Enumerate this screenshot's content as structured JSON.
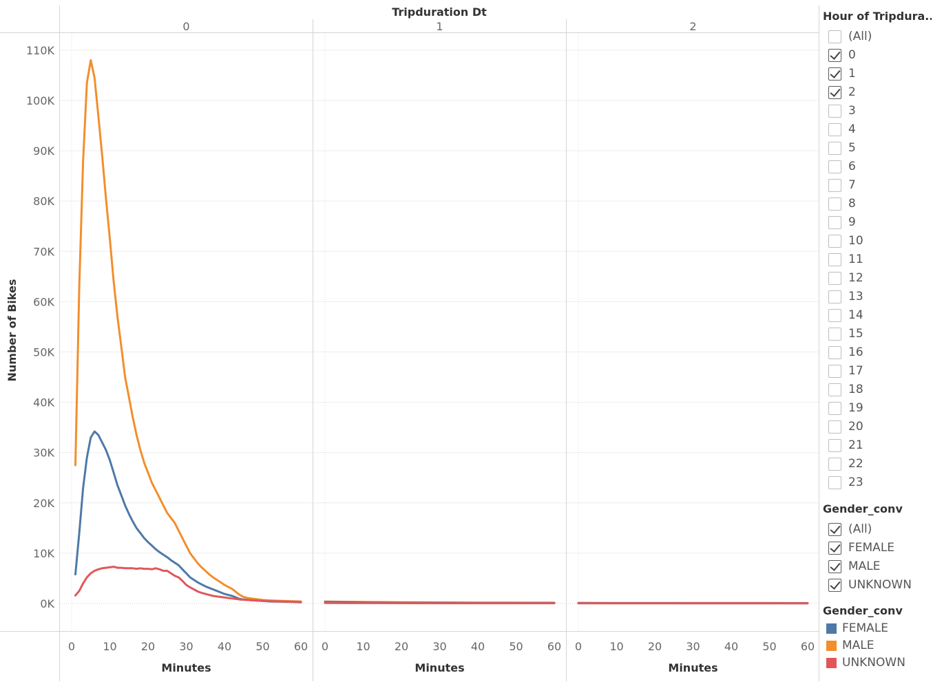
{
  "chart_data": {
    "type": "line",
    "column_header": "Tripduration Dt",
    "panels": [
      "0",
      "1",
      "2"
    ],
    "xlabel": "Minutes",
    "ylabel": "Number of Bikes",
    "xlim": [
      0,
      60
    ],
    "ylim": [
      -5000,
      115000
    ],
    "x_ticks": [
      "0",
      "10",
      "20",
      "30",
      "40",
      "50",
      "60"
    ],
    "y_ticks": [
      {
        "value": 0,
        "label": "0K"
      },
      {
        "value": 10000,
        "label": "10K"
      },
      {
        "value": 20000,
        "label": "20K"
      },
      {
        "value": 30000,
        "label": "30K"
      },
      {
        "value": 40000,
        "label": "40K"
      },
      {
        "value": 50000,
        "label": "50K"
      },
      {
        "value": 60000,
        "label": "60K"
      },
      {
        "value": 70000,
        "label": "70K"
      },
      {
        "value": 80000,
        "label": "80K"
      },
      {
        "value": 90000,
        "label": "90K"
      },
      {
        "value": 100000,
        "label": "100K"
      },
      {
        "value": 110000,
        "label": "110K"
      }
    ],
    "series": [
      {
        "name": "MALE",
        "color": "#f28e2b",
        "panels": [
          [
            [
              1,
              27500
            ],
            [
              2,
              63000
            ],
            [
              3,
              88000
            ],
            [
              4,
              103500
            ],
            [
              5,
              108000
            ],
            [
              6,
              104500
            ],
            [
              7,
              97000
            ],
            [
              8,
              89000
            ],
            [
              9,
              80500
            ],
            [
              10,
              72500
            ],
            [
              11,
              64000
            ],
            [
              12,
              57000
            ],
            [
              13,
              51000
            ],
            [
              14,
              45000
            ],
            [
              15,
              41000
            ],
            [
              16,
              37000
            ],
            [
              17,
              33500
            ],
            [
              18,
              30500
            ],
            [
              19,
              28000
            ],
            [
              20,
              26000
            ],
            [
              21,
              24000
            ],
            [
              22,
              22500
            ],
            [
              23,
              21000
            ],
            [
              24,
              19500
            ],
            [
              25,
              18000
            ],
            [
              26,
              17000
            ],
            [
              27,
              16000
            ],
            [
              28,
              14500
            ],
            [
              29,
              13000
            ],
            [
              30,
              11500
            ],
            [
              31,
              10000
            ],
            [
              32,
              9000
            ],
            [
              33,
              8000
            ],
            [
              34,
              7200
            ],
            [
              35,
              6500
            ],
            [
              36,
              5800
            ],
            [
              37,
              5200
            ],
            [
              38,
              4700
            ],
            [
              39,
              4200
            ],
            [
              40,
              3700
            ],
            [
              41,
              3300
            ],
            [
              42,
              2900
            ],
            [
              43,
              2300
            ],
            [
              44,
              1700
            ],
            [
              45,
              1300
            ],
            [
              46,
              1100
            ],
            [
              47,
              1000
            ],
            [
              48,
              900
            ],
            [
              49,
              800
            ],
            [
              50,
              700
            ],
            [
              52,
              600
            ],
            [
              55,
              500
            ],
            [
              58,
              450
            ],
            [
              60,
              400
            ]
          ],
          [
            [
              0,
              400
            ],
            [
              10,
              300
            ],
            [
              20,
              250
            ],
            [
              30,
              200
            ],
            [
              40,
              180
            ],
            [
              50,
              170
            ],
            [
              60,
              150
            ]
          ],
          [
            [
              0,
              120
            ],
            [
              10,
              110
            ],
            [
              20,
              100
            ],
            [
              30,
              100
            ],
            [
              40,
              90
            ],
            [
              50,
              90
            ],
            [
              60,
              80
            ]
          ]
        ]
      },
      {
        "name": "FEMALE",
        "color": "#4e79a7",
        "panels": [
          [
            [
              1,
              5800
            ],
            [
              2,
              14000
            ],
            [
              3,
              23000
            ],
            [
              4,
              29000
            ],
            [
              5,
              33000
            ],
            [
              6,
              34200
            ],
            [
              7,
              33500
            ],
            [
              8,
              32000
            ],
            [
              9,
              30500
            ],
            [
              10,
              28500
            ],
            [
              11,
              26000
            ],
            [
              12,
              23500
            ],
            [
              13,
              21500
            ],
            [
              14,
              19500
            ],
            [
              15,
              17800
            ],
            [
              16,
              16300
            ],
            [
              17,
              15000
            ],
            [
              18,
              14000
            ],
            [
              19,
              13000
            ],
            [
              20,
              12200
            ],
            [
              21,
              11500
            ],
            [
              22,
              10800
            ],
            [
              23,
              10200
            ],
            [
              24,
              9700
            ],
            [
              25,
              9200
            ],
            [
              26,
              8600
            ],
            [
              27,
              8100
            ],
            [
              28,
              7600
            ],
            [
              29,
              6800
            ],
            [
              30,
              6000
            ],
            [
              31,
              5200
            ],
            [
              32,
              4700
            ],
            [
              33,
              4200
            ],
            [
              34,
              3800
            ],
            [
              35,
              3400
            ],
            [
              36,
              3100
            ],
            [
              37,
              2800
            ],
            [
              38,
              2500
            ],
            [
              39,
              2200
            ],
            [
              40,
              1900
            ],
            [
              41,
              1700
            ],
            [
              42,
              1500
            ],
            [
              43,
              1200
            ],
            [
              44,
              900
            ],
            [
              45,
              800
            ],
            [
              46,
              700
            ],
            [
              48,
              600
            ],
            [
              50,
              500
            ],
            [
              52,
              400
            ],
            [
              55,
              350
            ],
            [
              58,
              300
            ],
            [
              60,
              250
            ]
          ],
          [
            [
              0,
              300
            ],
            [
              10,
              200
            ],
            [
              20,
              150
            ],
            [
              30,
              130
            ],
            [
              40,
              110
            ],
            [
              50,
              100
            ],
            [
              60,
              90
            ]
          ],
          [
            [
              0,
              80
            ],
            [
              10,
              70
            ],
            [
              20,
              70
            ],
            [
              30,
              60
            ],
            [
              40,
              60
            ],
            [
              50,
              50
            ],
            [
              60,
              50
            ]
          ]
        ]
      },
      {
        "name": "UNKNOWN",
        "color": "#e15759",
        "panels": [
          [
            [
              1,
              1600
            ],
            [
              2,
              2500
            ],
            [
              3,
              4000
            ],
            [
              4,
              5200
            ],
            [
              5,
              6000
            ],
            [
              6,
              6500
            ],
            [
              7,
              6800
            ],
            [
              8,
              7000
            ],
            [
              9,
              7100
            ],
            [
              10,
              7200
            ],
            [
              11,
              7300
            ],
            [
              12,
              7100
            ],
            [
              13,
              7100
            ],
            [
              14,
              7000
            ],
            [
              15,
              7000
            ],
            [
              16,
              7000
            ],
            [
              17,
              6900
            ],
            [
              18,
              7000
            ],
            [
              19,
              6900
            ],
            [
              20,
              6900
            ],
            [
              21,
              6800
            ],
            [
              22,
              7000
            ],
            [
              23,
              6800
            ],
            [
              24,
              6500
            ],
            [
              25,
              6500
            ],
            [
              26,
              6000
            ],
            [
              27,
              5500
            ],
            [
              28,
              5200
            ],
            [
              29,
              4500
            ],
            [
              30,
              3700
            ],
            [
              31,
              3200
            ],
            [
              32,
              2800
            ],
            [
              33,
              2400
            ],
            [
              34,
              2100
            ],
            [
              35,
              1900
            ],
            [
              36,
              1700
            ],
            [
              37,
              1500
            ],
            [
              38,
              1400
            ],
            [
              39,
              1300
            ],
            [
              40,
              1200
            ],
            [
              42,
              1000
            ],
            [
              44,
              800
            ],
            [
              46,
              700
            ],
            [
              48,
              600
            ],
            [
              50,
              500
            ],
            [
              55,
              400
            ],
            [
              60,
              300
            ]
          ],
          [
            [
              0,
              100
            ],
            [
              10,
              80
            ],
            [
              20,
              70
            ],
            [
              30,
              60
            ],
            [
              40,
              60
            ],
            [
              50,
              50
            ],
            [
              60,
              50
            ]
          ],
          [
            [
              0,
              40
            ],
            [
              10,
              40
            ],
            [
              20,
              30
            ],
            [
              30,
              30
            ],
            [
              40,
              30
            ],
            [
              50,
              30
            ],
            [
              60,
              30
            ]
          ]
        ]
      }
    ],
    "legend": {
      "title": "Gender_conv",
      "placement": "right",
      "items": [
        {
          "name": "FEMALE",
          "color": "#4e79a7"
        },
        {
          "name": "MALE",
          "color": "#f28e2b"
        },
        {
          "name": "UNKNOWN",
          "color": "#e15759"
        }
      ]
    },
    "grid": true
  },
  "filters": {
    "hour": {
      "title": "Hour of Tripdura..",
      "items": [
        {
          "label": "(All)",
          "checked": false
        },
        {
          "label": "0",
          "checked": true
        },
        {
          "label": "1",
          "checked": true
        },
        {
          "label": "2",
          "checked": true
        },
        {
          "label": "3",
          "checked": false
        },
        {
          "label": "4",
          "checked": false
        },
        {
          "label": "5",
          "checked": false
        },
        {
          "label": "6",
          "checked": false
        },
        {
          "label": "7",
          "checked": false
        },
        {
          "label": "8",
          "checked": false
        },
        {
          "label": "9",
          "checked": false
        },
        {
          "label": "10",
          "checked": false
        },
        {
          "label": "11",
          "checked": false
        },
        {
          "label": "12",
          "checked": false
        },
        {
          "label": "13",
          "checked": false
        },
        {
          "label": "14",
          "checked": false
        },
        {
          "label": "15",
          "checked": false
        },
        {
          "label": "16",
          "checked": false
        },
        {
          "label": "17",
          "checked": false
        },
        {
          "label": "18",
          "checked": false
        },
        {
          "label": "19",
          "checked": false
        },
        {
          "label": "20",
          "checked": false
        },
        {
          "label": "21",
          "checked": false
        },
        {
          "label": "22",
          "checked": false
        },
        {
          "label": "23",
          "checked": false
        }
      ]
    },
    "gender": {
      "title": "Gender_conv",
      "items": [
        {
          "label": "(All)",
          "checked": true
        },
        {
          "label": "FEMALE",
          "checked": true
        },
        {
          "label": "MALE",
          "checked": true
        },
        {
          "label": "UNKNOWN",
          "checked": true
        }
      ]
    }
  }
}
